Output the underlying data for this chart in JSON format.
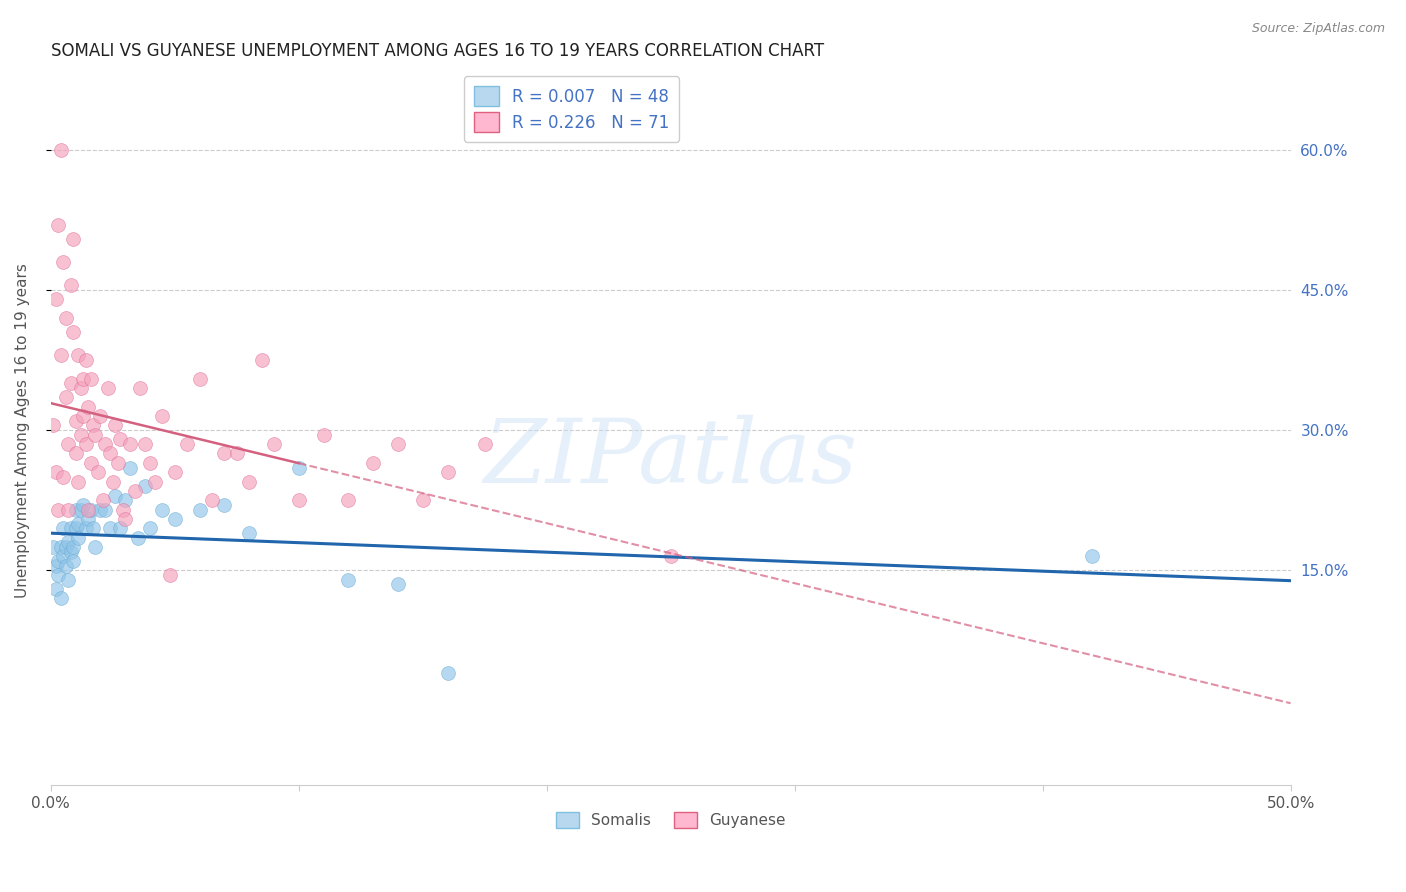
{
  "title": "SOMALI VS GUYANESE UNEMPLOYMENT AMONG AGES 16 TO 19 YEARS CORRELATION CHART",
  "source": "Source: ZipAtlas.com",
  "ylabel": "Unemployment Among Ages 16 to 19 years",
  "xlim": [
    0.0,
    0.5
  ],
  "ylim": [
    -0.08,
    0.68
  ],
  "ytick_positions": [
    0.15,
    0.3,
    0.45,
    0.6
  ],
  "somali_color": "#90c4e8",
  "somali_edge_color": "#6aaad4",
  "guyanese_color": "#f4a0bb",
  "guyanese_edge_color": "#e0709a",
  "somali_line_color": "#2166ac",
  "guyanese_line_color": "#d46080",
  "somali_R": 0.007,
  "somali_N": 48,
  "guyanese_R": 0.226,
  "guyanese_N": 71,
  "somali_x": [
    0.001,
    0.002,
    0.002,
    0.003,
    0.003,
    0.004,
    0.004,
    0.005,
    0.005,
    0.006,
    0.006,
    0.007,
    0.007,
    0.008,
    0.008,
    0.009,
    0.009,
    0.01,
    0.01,
    0.011,
    0.011,
    0.012,
    0.013,
    0.014,
    0.015,
    0.016,
    0.017,
    0.018,
    0.02,
    0.022,
    0.024,
    0.026,
    0.028,
    0.03,
    0.032,
    0.035,
    0.038,
    0.04,
    0.045,
    0.05,
    0.06,
    0.07,
    0.08,
    0.1,
    0.12,
    0.14,
    0.16,
    0.42
  ],
  "somali_y": [
    0.175,
    0.155,
    0.13,
    0.145,
    0.16,
    0.175,
    0.12,
    0.165,
    0.195,
    0.175,
    0.155,
    0.18,
    0.14,
    0.17,
    0.195,
    0.175,
    0.16,
    0.195,
    0.215,
    0.185,
    0.2,
    0.215,
    0.22,
    0.195,
    0.205,
    0.215,
    0.195,
    0.175,
    0.215,
    0.215,
    0.195,
    0.23,
    0.195,
    0.225,
    0.26,
    0.185,
    0.24,
    0.195,
    0.215,
    0.205,
    0.215,
    0.22,
    0.19,
    0.26,
    0.14,
    0.135,
    0.04,
    0.165
  ],
  "guyanese_x": [
    0.001,
    0.002,
    0.002,
    0.003,
    0.003,
    0.004,
    0.004,
    0.005,
    0.005,
    0.006,
    0.006,
    0.007,
    0.007,
    0.008,
    0.008,
    0.009,
    0.009,
    0.01,
    0.01,
    0.011,
    0.011,
    0.012,
    0.012,
    0.013,
    0.013,
    0.014,
    0.014,
    0.015,
    0.015,
    0.016,
    0.016,
    0.017,
    0.018,
    0.019,
    0.02,
    0.021,
    0.022,
    0.023,
    0.024,
    0.025,
    0.026,
    0.027,
    0.028,
    0.029,
    0.03,
    0.032,
    0.034,
    0.036,
    0.038,
    0.04,
    0.042,
    0.045,
    0.048,
    0.05,
    0.055,
    0.06,
    0.065,
    0.07,
    0.075,
    0.08,
    0.085,
    0.09,
    0.1,
    0.11,
    0.12,
    0.13,
    0.14,
    0.15,
    0.16,
    0.175,
    0.25
  ],
  "guyanese_y": [
    0.305,
    0.255,
    0.44,
    0.215,
    0.52,
    0.38,
    0.6,
    0.25,
    0.48,
    0.335,
    0.42,
    0.215,
    0.285,
    0.35,
    0.455,
    0.405,
    0.505,
    0.275,
    0.31,
    0.245,
    0.38,
    0.345,
    0.295,
    0.355,
    0.315,
    0.375,
    0.285,
    0.325,
    0.215,
    0.265,
    0.355,
    0.305,
    0.295,
    0.255,
    0.315,
    0.225,
    0.285,
    0.345,
    0.275,
    0.245,
    0.305,
    0.265,
    0.29,
    0.215,
    0.205,
    0.285,
    0.235,
    0.345,
    0.285,
    0.265,
    0.245,
    0.315,
    0.145,
    0.255,
    0.285,
    0.355,
    0.225,
    0.275,
    0.275,
    0.245,
    0.375,
    0.285,
    0.225,
    0.295,
    0.225,
    0.265,
    0.285,
    0.225,
    0.255,
    0.285,
    0.165
  ],
  "background_color": "#ffffff",
  "grid_color": "#cccccc",
  "title_fontsize": 12,
  "axis_label_fontsize": 11,
  "tick_fontsize": 11,
  "watermark_text": "ZIPatlas",
  "right_label_color": "#4472c4",
  "legend_color": "#4472c4"
}
